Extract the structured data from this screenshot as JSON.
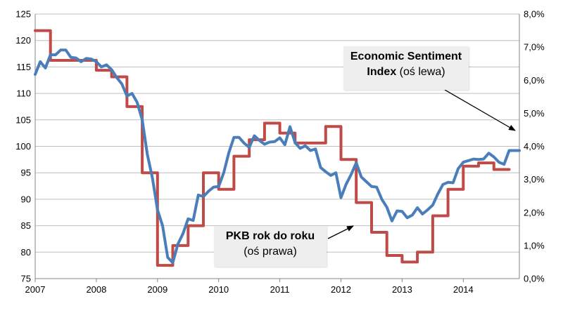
{
  "chart_data": {
    "type": "line",
    "x_tick_labels": [
      "2007",
      "2008",
      "2009",
      "2010",
      "2011",
      "2012",
      "2013",
      "2014"
    ],
    "left_axis": {
      "range": [
        75,
        125
      ],
      "ticks": [
        "75",
        "80",
        "85",
        "90",
        "95",
        "100",
        "105",
        "110",
        "115",
        "120",
        "125"
      ]
    },
    "right_axis": {
      "range": [
        0,
        8
      ],
      "ticks": [
        "0,0%",
        "1,0%",
        "2,0%",
        "3,0%",
        "4,0%",
        "5,0%",
        "6,0%",
        "7,0%",
        "8,0%"
      ]
    },
    "x_range": [
      2007.0,
      2014.917
    ],
    "grid": "horizontal",
    "series": [
      {
        "name": "Economic Sentiment Index",
        "axis": "left",
        "color": "#4a7ebb",
        "x": [
          2007.0,
          2007.083,
          2007.167,
          2007.25,
          2007.333,
          2007.417,
          2007.5,
          2007.583,
          2007.667,
          2007.75,
          2007.833,
          2007.917,
          2008.0,
          2008.083,
          2008.167,
          2008.25,
          2008.333,
          2008.417,
          2008.5,
          2008.583,
          2008.667,
          2008.75,
          2008.833,
          2008.917,
          2009.0,
          2009.083,
          2009.167,
          2009.25,
          2009.333,
          2009.417,
          2009.5,
          2009.583,
          2009.667,
          2009.75,
          2009.833,
          2009.917,
          2010.0,
          2010.083,
          2010.167,
          2010.25,
          2010.333,
          2010.417,
          2010.5,
          2010.583,
          2010.667,
          2010.75,
          2010.833,
          2010.917,
          2011.0,
          2011.083,
          2011.167,
          2011.25,
          2011.333,
          2011.417,
          2011.5,
          2011.583,
          2011.667,
          2011.75,
          2011.833,
          2011.917,
          2012.0,
          2012.083,
          2012.167,
          2012.25,
          2012.333,
          2012.417,
          2012.5,
          2012.583,
          2012.667,
          2012.75,
          2012.833,
          2012.917,
          2013.0,
          2013.083,
          2013.167,
          2013.25,
          2013.333,
          2013.417,
          2013.5,
          2013.583,
          2013.667,
          2013.75,
          2013.833,
          2013.917,
          2014.0,
          2014.083,
          2014.167,
          2014.25,
          2014.333,
          2014.417,
          2014.5,
          2014.583,
          2014.667,
          2014.75,
          2014.833,
          2014.917
        ],
        "y": [
          113.6,
          116.0,
          114.8,
          117.3,
          117.3,
          118.2,
          118.2,
          116.8,
          116.7,
          116.0,
          116.6,
          116.5,
          116.0,
          115.0,
          115.4,
          114.5,
          113.0,
          111.8,
          109.5,
          110.0,
          108.3,
          105.0,
          98.5,
          94.0,
          88.0,
          85.0,
          79.0,
          78.0,
          81.5,
          83.5,
          86.3,
          86.0,
          90.8,
          90.5,
          91.5,
          92.3,
          92.4,
          95.0,
          98.8,
          101.7,
          101.7,
          100.6,
          99.8,
          102.0,
          101.1,
          100.4,
          100.8,
          100.9,
          101.6,
          100.3,
          103.7,
          100.7,
          99.6,
          100.1,
          99.2,
          99.5,
          96.0,
          95.2,
          94.5,
          95.0,
          90.3,
          92.8,
          94.7,
          96.9,
          94.2,
          93.3,
          92.4,
          92.3,
          90.0,
          88.5,
          85.9,
          87.8,
          87.7,
          86.5,
          87.0,
          88.4,
          87.2,
          88.0,
          88.9,
          91.0,
          92.8,
          93.2,
          93.1,
          95.8,
          97.0,
          97.3,
          97.6,
          97.5,
          97.6,
          98.7,
          98.0,
          97.0,
          96.6,
          99.2,
          99.2,
          99.2
        ]
      },
      {
        "name": "PKB rok do roku",
        "axis": "right",
        "color": "#be4b48",
        "x": [
          2007.0,
          2007.25,
          2007.5,
          2007.75,
          2008.0,
          2008.25,
          2008.5,
          2008.75,
          2009.0,
          2009.25,
          2009.5,
          2009.75,
          2010.0,
          2010.25,
          2010.5,
          2010.75,
          2011.0,
          2011.25,
          2011.5,
          2011.75,
          2012.0,
          2012.25,
          2012.5,
          2012.75,
          2013.0,
          2013.25,
          2013.5,
          2013.75,
          2014.0,
          2014.25,
          2014.5,
          2014.75
        ],
        "y": [
          7.5,
          6.6,
          6.6,
          6.6,
          6.3,
          6.1,
          5.2,
          3.2,
          0.4,
          1.0,
          1.6,
          3.2,
          2.7,
          3.7,
          4.2,
          4.7,
          4.4,
          4.1,
          4.1,
          4.6,
          3.6,
          2.3,
          1.4,
          0.7,
          0.5,
          0.8,
          1.9,
          2.7,
          3.4,
          3.5,
          3.3,
          3.3
        ]
      }
    ],
    "annotations": [
      {
        "bold": "Economic Sentiment",
        "bold2": "Index",
        "rest": " (oś lewa)"
      },
      {
        "bold": "PKB rok do roku",
        "rest": "(oś prawa)"
      }
    ]
  }
}
